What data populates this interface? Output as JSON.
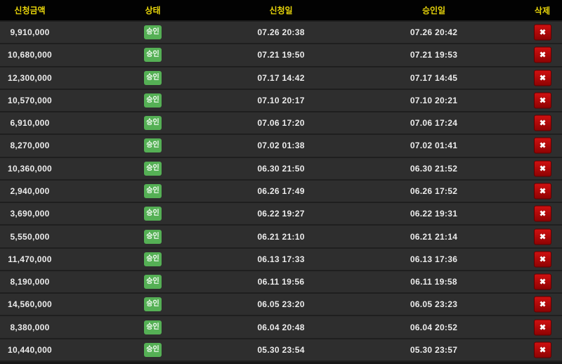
{
  "header": {
    "amount": "신청금액",
    "status": "상태",
    "requested": "신청일",
    "approved": "승인일",
    "delete": "삭제"
  },
  "delete_icon": "✖",
  "colors": {
    "header_bg": "#020202",
    "header_text": "#e8d50a",
    "row_bg": "#2e2e2e",
    "row_separator": "#1f1f1f",
    "cell_text": "#ececec",
    "badge_green": "#55b055",
    "delete_red": "#b30909"
  },
  "rows": [
    {
      "amount": "9,910,000",
      "status": "승인",
      "requested": "07.26 20:38",
      "approved": "07.26 20:42"
    },
    {
      "amount": "10,680,000",
      "status": "승인",
      "requested": "07.21 19:50",
      "approved": "07.21 19:53"
    },
    {
      "amount": "12,300,000",
      "status": "승인",
      "requested": "07.17 14:42",
      "approved": "07.17 14:45"
    },
    {
      "amount": "10,570,000",
      "status": "승인",
      "requested": "07.10 20:17",
      "approved": "07.10 20:21"
    },
    {
      "amount": "6,910,000",
      "status": "승인",
      "requested": "07.06 17:20",
      "approved": "07.06 17:24"
    },
    {
      "amount": "8,270,000",
      "status": "승인",
      "requested": "07.02 01:38",
      "approved": "07.02 01:41"
    },
    {
      "amount": "10,360,000",
      "status": "승인",
      "requested": "06.30 21:50",
      "approved": "06.30 21:52"
    },
    {
      "amount": "2,940,000",
      "status": "승인",
      "requested": "06.26 17:49",
      "approved": "06.26 17:52"
    },
    {
      "amount": "3,690,000",
      "status": "승인",
      "requested": "06.22 19:27",
      "approved": "06.22 19:31"
    },
    {
      "amount": "5,550,000",
      "status": "승인",
      "requested": "06.21 21:10",
      "approved": "06.21 21:14"
    },
    {
      "amount": "11,470,000",
      "status": "승인",
      "requested": "06.13 17:33",
      "approved": "06.13 17:36"
    },
    {
      "amount": "8,190,000",
      "status": "승인",
      "requested": "06.11 19:56",
      "approved": "06.11 19:58"
    },
    {
      "amount": "14,560,000",
      "status": "승인",
      "requested": "06.05 23:20",
      "approved": "06.05 23:23"
    },
    {
      "amount": "8,380,000",
      "status": "승인",
      "requested": "06.04 20:48",
      "approved": "06.04 20:52"
    },
    {
      "amount": "10,440,000",
      "status": "승인",
      "requested": "05.30 23:54",
      "approved": "05.30 23:57"
    }
  ]
}
